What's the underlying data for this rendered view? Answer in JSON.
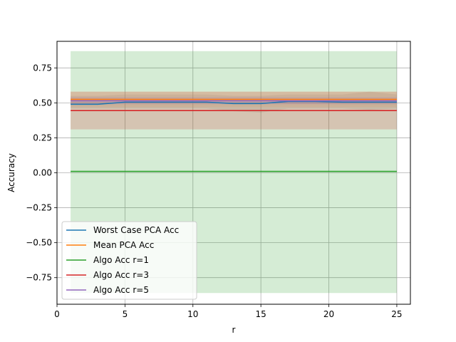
{
  "chart_data": {
    "type": "line",
    "title": "",
    "xlabel": "r",
    "ylabel": "Accuracy",
    "xlim": [
      0,
      26
    ],
    "ylim": [
      -0.94,
      0.94
    ],
    "x_ticks": [
      0,
      5,
      10,
      15,
      20,
      25
    ],
    "y_ticks": [
      -0.75,
      -0.5,
      -0.25,
      0.0,
      0.25,
      0.5,
      0.75
    ],
    "x_tick_labels": [
      "0",
      "5",
      "10",
      "15",
      "20",
      "25"
    ],
    "y_tick_labels": [
      "−0.75",
      "−0.50",
      "−0.25",
      "0.00",
      "0.25",
      "0.50",
      "0.75"
    ],
    "grid": true,
    "legend_position": "lower-left",
    "x": [
      1,
      3,
      5,
      7,
      9,
      11,
      13,
      15,
      17,
      19,
      21,
      23,
      25
    ],
    "series": [
      {
        "name": "Worst Case PCA Acc",
        "color": "#1f77b4",
        "values": [
          0.49,
          0.49,
          0.505,
          0.505,
          0.505,
          0.505,
          0.495,
          0.495,
          0.51,
          0.51,
          0.505,
          0.505,
          0.505
        ],
        "band_lower": [
          0.46,
          0.46,
          0.46,
          0.46,
          0.46,
          0.46,
          0.44,
          0.43,
          0.46,
          0.46,
          0.46,
          0.45,
          0.46
        ],
        "band_upper": [
          0.55,
          0.55,
          0.56,
          0.56,
          0.56,
          0.56,
          0.55,
          0.55,
          0.56,
          0.56,
          0.56,
          0.58,
          0.56
        ],
        "band_color": "#9c9c9c"
      },
      {
        "name": "Mean PCA Acc",
        "color": "#ff7f0e",
        "values": [
          0.525,
          0.525,
          0.525,
          0.525,
          0.525,
          0.525,
          0.525,
          0.525,
          0.525,
          0.525,
          0.525,
          0.525,
          0.525
        ],
        "band_lower": [
          0.47,
          0.47,
          0.47,
          0.47,
          0.47,
          0.47,
          0.47,
          0.47,
          0.47,
          0.47,
          0.47,
          0.47,
          0.47
        ],
        "band_upper": [
          0.58,
          0.58,
          0.58,
          0.58,
          0.58,
          0.58,
          0.58,
          0.58,
          0.58,
          0.58,
          0.58,
          0.58,
          0.58
        ],
        "band_color": "#ffbf86"
      },
      {
        "name": "Algo Acc r=1",
        "color": "#2ca02c",
        "values": [
          0.01,
          0.01,
          0.01,
          0.01,
          0.01,
          0.01,
          0.01,
          0.01,
          0.01,
          0.01,
          0.01,
          0.01,
          0.01
        ],
        "band_lower": [
          -0.86,
          -0.86,
          -0.86,
          -0.86,
          -0.86,
          -0.86,
          -0.86,
          -0.86,
          -0.86,
          -0.86,
          -0.86,
          -0.86,
          -0.86
        ],
        "band_upper": [
          0.87,
          0.87,
          0.87,
          0.87,
          0.87,
          0.87,
          0.87,
          0.87,
          0.87,
          0.87,
          0.87,
          0.87,
          0.87
        ],
        "band_color": "#2ca02c"
      },
      {
        "name": "Algo Acc r=3",
        "color": "#d62728",
        "values": [
          0.445,
          0.445,
          0.445,
          0.445,
          0.445,
          0.445,
          0.445,
          0.445,
          0.445,
          0.445,
          0.445,
          0.445,
          0.445
        ],
        "band_lower": [
          0.31,
          0.31,
          0.31,
          0.31,
          0.31,
          0.31,
          0.31,
          0.31,
          0.31,
          0.31,
          0.31,
          0.31,
          0.31
        ],
        "band_upper": [
          0.58,
          0.58,
          0.58,
          0.58,
          0.58,
          0.58,
          0.58,
          0.58,
          0.58,
          0.58,
          0.58,
          0.58,
          0.58
        ],
        "band_color": "#d62728"
      },
      {
        "name": "Algo Acc r=5",
        "color": "#9467bd",
        "values": [
          0.515,
          0.515,
          0.515,
          0.515,
          0.515,
          0.515,
          0.515,
          0.515,
          0.515,
          0.515,
          0.515,
          0.515,
          0.515
        ],
        "band_lower": [
          0.49,
          0.49,
          0.49,
          0.49,
          0.49,
          0.49,
          0.49,
          0.49,
          0.49,
          0.49,
          0.49,
          0.49,
          0.49
        ],
        "band_upper": [
          0.54,
          0.54,
          0.54,
          0.54,
          0.54,
          0.54,
          0.54,
          0.54,
          0.54,
          0.54,
          0.54,
          0.54,
          0.54
        ],
        "band_color": "#9467bd"
      }
    ]
  }
}
